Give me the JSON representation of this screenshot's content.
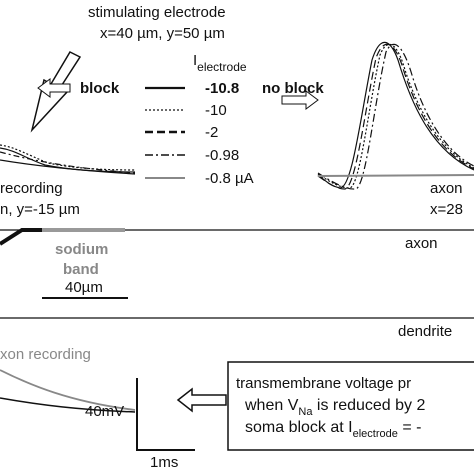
{
  "header": {
    "title": "stimulating electrode",
    "position": "x=40 µm, y=50 µm"
  },
  "legend": {
    "title_main": "I",
    "title_sub": "electrode",
    "entries": [
      "-10.8",
      "-10",
      "-2",
      "-0.98",
      "-0.8 µA"
    ]
  },
  "labels": {
    "block": "block",
    "no_block": "no block",
    "left_recording_1": "recording",
    "left_recording_2": "n, y=-15 µm",
    "right_recording_1": "axon",
    "right_recording_2": "x=28",
    "sodium_1": "sodium",
    "sodium_2": "band",
    "scale_40um": "40µm",
    "axon": "axon",
    "dendrite": "dendrite",
    "axon_recording": "xon recording",
    "scale_mv": "40mV",
    "scale_ms": "1ms"
  },
  "box": {
    "line1": "transmembrane voltage pr",
    "line2_a": "when V",
    "line2_sub": "Na",
    "line2_b": " is reduced by 2",
    "line3_a": "soma block at I",
    "line3_sub": "electrode",
    "line3_b": " = -"
  }
}
